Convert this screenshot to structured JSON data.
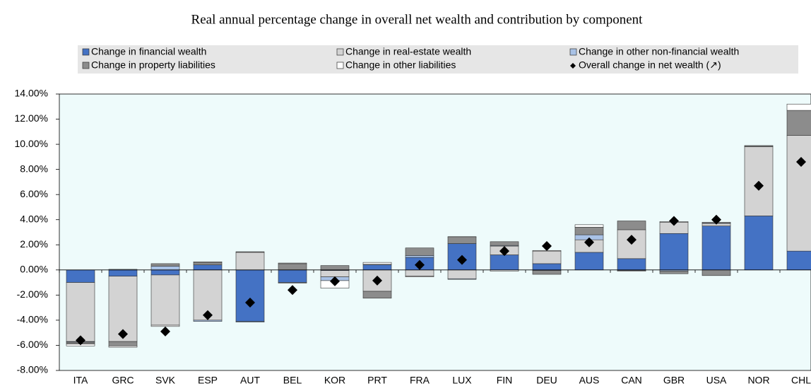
{
  "chart_data": {
    "type": "bar",
    "stacked": true,
    "title": "Real annual percentage change in overall net wealth and contribution by component",
    "categories": [
      "ITA",
      "GRC",
      "SVK",
      "ESP",
      "AUT",
      "BEL",
      "KOR",
      "PRT",
      "FRA",
      "LUX",
      "FIN",
      "DEU",
      "AUS",
      "CAN",
      "GBR",
      "USA",
      "NOR",
      "CHL"
    ],
    "series": [
      {
        "name": "Change in financial wealth",
        "color": "#4472c4",
        "values": [
          -1.0,
          -0.5,
          -0.4,
          0.4,
          -4.1,
          -1.0,
          -0.05,
          0.4,
          1.0,
          2.1,
          1.2,
          0.5,
          1.4,
          0.9,
          2.9,
          3.5,
          4.3,
          1.5
        ]
      },
      {
        "name": "Change in real-estate wealth",
        "color": "#d3d3d3",
        "values": [
          -4.7,
          -5.2,
          -4.0,
          -4.0,
          1.4,
          -0.05,
          -0.5,
          -1.7,
          -0.5,
          -0.7,
          0.7,
          1.0,
          1.0,
          2.3,
          0.9,
          0.2,
          5.5,
          9.2
        ]
      },
      {
        "name": "Change in other non-financial wealth",
        "color": "#a9c2e6",
        "values": [
          -0.05,
          0.05,
          0.3,
          -0.1,
          -0.05,
          0,
          -0.3,
          0.05,
          0.15,
          -0.05,
          0.05,
          -0.05,
          0.4,
          -0.05,
          -0.1,
          0.05,
          0,
          0
        ]
      },
      {
        "name": "Change in property liabilities",
        "color": "#8c8c8c",
        "values": [
          -0.15,
          -0.35,
          0.2,
          0.2,
          0.05,
          0.5,
          0.35,
          -0.55,
          0.6,
          0.5,
          0.3,
          -0.3,
          0.6,
          0.7,
          -0.2,
          -0.45,
          0.05,
          2.0
        ]
      },
      {
        "name": "Change in other liabilities",
        "color": "#ffffff",
        "values": [
          -0.15,
          -0.1,
          -0.1,
          0.05,
          0,
          0.05,
          -0.6,
          0.15,
          -0.05,
          0.05,
          -0.1,
          0.05,
          0.2,
          -0.05,
          0.05,
          0.05,
          0.05,
          0.5
        ]
      },
      {
        "name": "Overall change in net wealth (↗)",
        "color": "#000000",
        "type": "scatter",
        "values": [
          -5.6,
          -5.1,
          -4.9,
          -3.6,
          -2.6,
          -1.6,
          -0.9,
          -0.85,
          0.4,
          0.8,
          1.5,
          1.9,
          2.2,
          2.4,
          3.9,
          4.0,
          6.7,
          8.6
        ]
      }
    ],
    "ylim": [
      -8,
      14
    ],
    "yticks": [
      {
        "value": -8,
        "label": "-8.00%"
      },
      {
        "value": -6,
        "label": "-6.00%"
      },
      {
        "value": -4,
        "label": "-4.00%"
      },
      {
        "value": -2,
        "label": "-2.00%"
      },
      {
        "value": 0,
        "label": "0.00%"
      },
      {
        "value": 2,
        "label": "2.00%"
      },
      {
        "value": 4,
        "label": "4.00%"
      },
      {
        "value": 6,
        "label": "6.00%"
      },
      {
        "value": 8,
        "label": "8.00%"
      },
      {
        "value": 10,
        "label": "10.00%"
      },
      {
        "value": 12,
        "label": "12.00%"
      },
      {
        "value": 14,
        "label": "14.00%"
      }
    ],
    "grid": false
  }
}
